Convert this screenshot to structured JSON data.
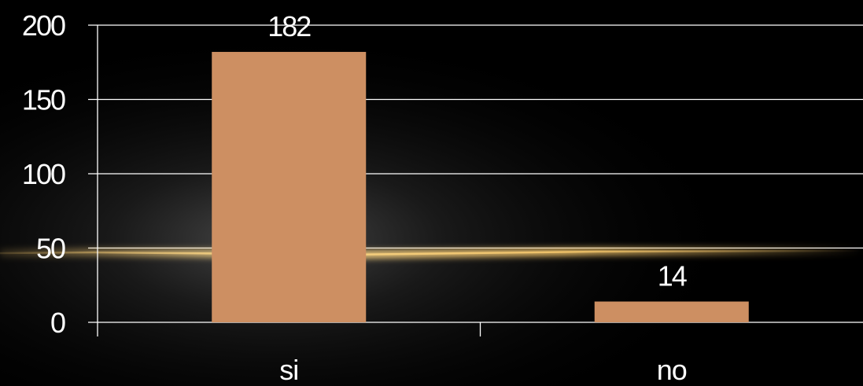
{
  "chart_data": {
    "type": "bar",
    "categories": [
      "si",
      "no"
    ],
    "values": [
      182,
      14
    ],
    "data_labels": [
      "182",
      "14"
    ],
    "title": "",
    "xlabel": "",
    "ylabel": "",
    "ylim": [
      0,
      200
    ],
    "yticks": [
      0,
      50,
      100,
      150,
      200
    ],
    "ytick_labels": [
      "0",
      "50",
      "100",
      "150",
      "200"
    ],
    "grid": true,
    "legend": "none"
  },
  "colors": {
    "background": "#000000",
    "bar": "#cd8f62",
    "grid": "#ffffff",
    "text": "#ffffff",
    "glow_line": "#f2c46a"
  }
}
